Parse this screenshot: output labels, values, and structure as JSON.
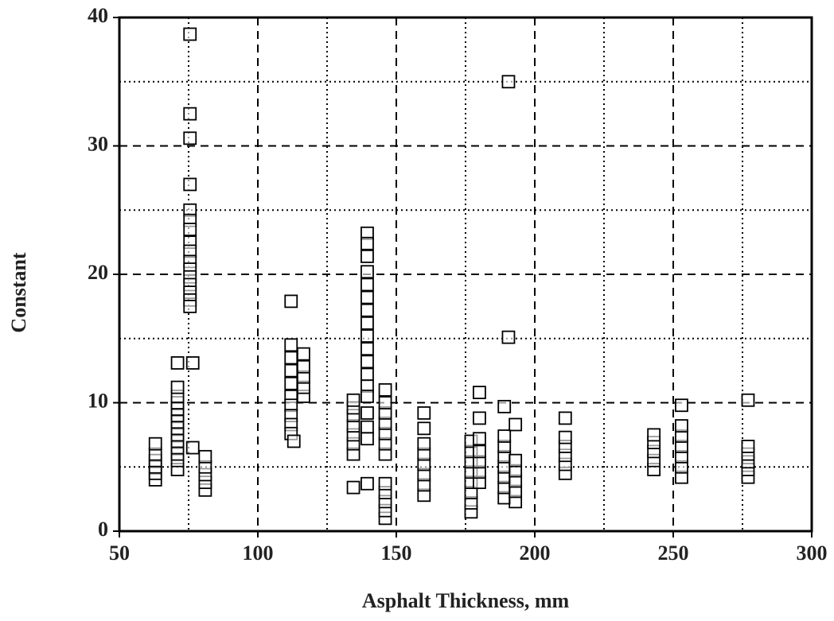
{
  "chart_data": {
    "type": "scatter",
    "xlabel": "Asphalt Thickness, mm",
    "ylabel": "Constant",
    "xlim": [
      50,
      300
    ],
    "ylim": [
      0,
      40
    ],
    "xticks": [
      50,
      100,
      150,
      200,
      250,
      300
    ],
    "yticks": [
      0,
      10,
      20,
      30,
      40
    ],
    "minor_xgrid": [
      75,
      125,
      175,
      225,
      275
    ],
    "minor_ygrid": [
      5,
      15,
      25,
      35
    ],
    "grid": true,
    "marker": "square",
    "color": "#000000",
    "x": [
      63,
      63,
      63,
      63,
      63,
      63,
      71,
      71,
      71,
      71,
      71,
      71,
      71,
      71,
      71,
      71,
      71,
      71,
      71,
      71,
      75.5,
      75.5,
      75.5,
      75.5,
      75.5,
      75.5,
      75.5,
      75.5,
      75.5,
      75.5,
      75.5,
      75.5,
      75.5,
      75.5,
      75.5,
      75.5,
      76.5,
      76.5,
      81,
      81,
      81,
      81,
      81,
      112,
      112,
      112,
      112,
      112,
      112,
      112,
      112,
      112,
      112,
      113,
      116.5,
      116.5,
      116.5,
      116.5,
      116.5,
      134.5,
      134.5,
      134.5,
      134.5,
      134.5,
      134.5,
      134.5,
      134.5,
      139.5,
      139.5,
      139.5,
      139.5,
      139.5,
      139.5,
      139.5,
      139.5,
      139.5,
      139.5,
      139.5,
      139.5,
      139.5,
      139.5,
      139.5,
      139.5,
      139.5,
      139.5,
      146,
      146,
      146,
      146,
      146,
      146,
      146,
      146,
      146,
      146,
      146,
      146,
      160,
      160,
      160,
      160,
      160,
      160,
      160,
      160,
      177,
      177,
      177,
      177,
      177,
      177,
      177,
      177,
      180,
      180,
      180,
      180,
      180,
      180,
      180,
      189,
      189,
      189,
      189,
      189,
      189,
      189,
      189,
      190.5,
      190.5,
      193,
      193,
      193,
      193,
      193,
      193,
      211,
      211,
      211,
      211,
      211,
      211,
      243,
      243,
      243,
      243,
      243,
      253,
      253,
      253,
      253,
      253,
      253,
      253,
      277,
      277,
      277,
      277,
      277,
      277
    ],
    "y": [
      4,
      4.5,
      5,
      5.5,
      6,
      6.8,
      4.8,
      5.5,
      6,
      6.5,
      7,
      7.5,
      8,
      8.5,
      9,
      9.5,
      10,
      10.5,
      11.2,
      13.1,
      38.7,
      32.5,
      30.6,
      27,
      25,
      24.2,
      23.5,
      22.5,
      21.8,
      21,
      20.4,
      19.8,
      19.2,
      18.6,
      18,
      17.5,
      13.1,
      6.5,
      3.2,
      3.8,
      4.4,
      5,
      5.8,
      17.9,
      14.5,
      13.5,
      12.5,
      11.5,
      10.5,
      9.8,
      9,
      8.3,
      7.6,
      7,
      10.5,
      11.2,
      12,
      12.8,
      13.8,
      3.4,
      6,
      6.8,
      7.5,
      8.2,
      9,
      9.6,
      10.2,
      23.2,
      22.4,
      21.4,
      20.2,
      19.2,
      18.2,
      17.2,
      16.2,
      15.2,
      14.2,
      13.2,
      12.2,
      11.3,
      10.5,
      9.2,
      8.1,
      7.2,
      3.7,
      1,
      1.6,
      2.3,
      3,
      3.7,
      6,
      6.8,
      7.6,
      8.4,
      9.2,
      10,
      11,
      2.8,
      3.6,
      4.4,
      5.2,
      6,
      6.8,
      8,
      9.2,
      1.5,
      2.2,
      3,
      3.8,
      4.6,
      5.4,
      6.2,
      7,
      3.8,
      4.6,
      5.4,
      6.2,
      7.2,
      8.8,
      10.8,
      2.6,
      3.4,
      4.2,
      5,
      5.8,
      6.6,
      7.4,
      9.7,
      35,
      15.1,
      2.3,
      3.1,
      3.9,
      4.7,
      5.5,
      8.3,
      4.5,
      5.2,
      5.9,
      6.6,
      7.3,
      8.8,
      4.8,
      5.5,
      6.2,
      6.9,
      7.5,
      4.2,
      5,
      5.8,
      6.6,
      7.4,
      8.2,
      9.8,
      4.2,
      4.8,
      5.4,
      6,
      6.6,
      10.2
    ]
  }
}
